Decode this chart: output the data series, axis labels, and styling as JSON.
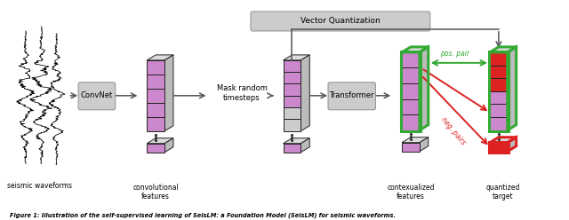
{
  "bg_color": "#ffffff",
  "block_purple": "#cc88cc",
  "block_dark": "#9955aa",
  "block_green_outline": "#33aa33",
  "block_red": "#dd2222",
  "arrow_color": "#555555",
  "pos_pair_color": "#33aa33",
  "neg_pairs_color": "#dd2222",
  "vq_box_color": "#cccccc",
  "convnet_box_color": "#cccccc",
  "transformer_box_color": "#cccccc",
  "labels": {
    "seismic": "seismic waveforms",
    "conv_features": "convolutional\nfeatures",
    "context_features": "contexualized\nfeatures",
    "quantized": "quantized\ntarget",
    "mask": "Mask random\ntimesteps",
    "vq": "Vector Quantization",
    "convnet": "ConvNet",
    "transformer": "Transformer",
    "pos_pair": "pos. pair",
    "neg_pairs": "neg. pairs"
  },
  "caption": "Figure 1: Illustration of the self-supervised learning of SeisLM: a Foundation Model (SeisLM) for seismic waveforms."
}
